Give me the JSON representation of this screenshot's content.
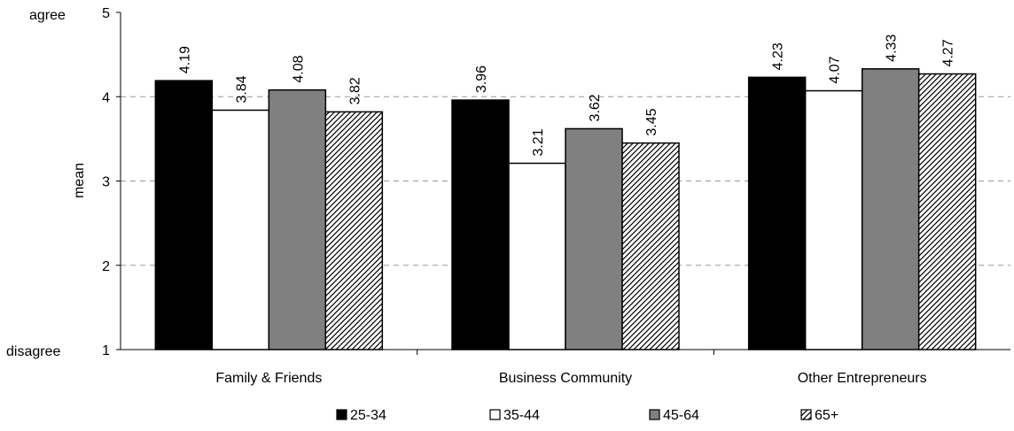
{
  "chart_data": {
    "type": "bar",
    "categories": [
      "Family & Friends",
      "Business Community",
      "Other Entrepreneurs"
    ],
    "series": [
      {
        "name": "25-34",
        "values": [
          4.19,
          3.96,
          4.23
        ],
        "color": "#000000",
        "pattern": "solid"
      },
      {
        "name": "35-44",
        "values": [
          3.84,
          3.21,
          4.07
        ],
        "color": "#ffffff",
        "pattern": "solid"
      },
      {
        "name": "45-64",
        "values": [
          4.08,
          3.62,
          4.33
        ],
        "color": "#808080",
        "pattern": "solid"
      },
      {
        "name": "65+",
        "values": [
          3.82,
          3.45,
          4.27
        ],
        "color": "#ffffff",
        "pattern": "diagonal-hatch"
      }
    ],
    "ylabel": "mean",
    "ylim": [
      1,
      5
    ],
    "yticks": [
      1,
      2,
      3,
      4,
      5
    ],
    "y_end_labels": {
      "top": "agree",
      "bottom": "disagree"
    },
    "grid": true,
    "legend_position": "bottom",
    "data_labels": true
  }
}
